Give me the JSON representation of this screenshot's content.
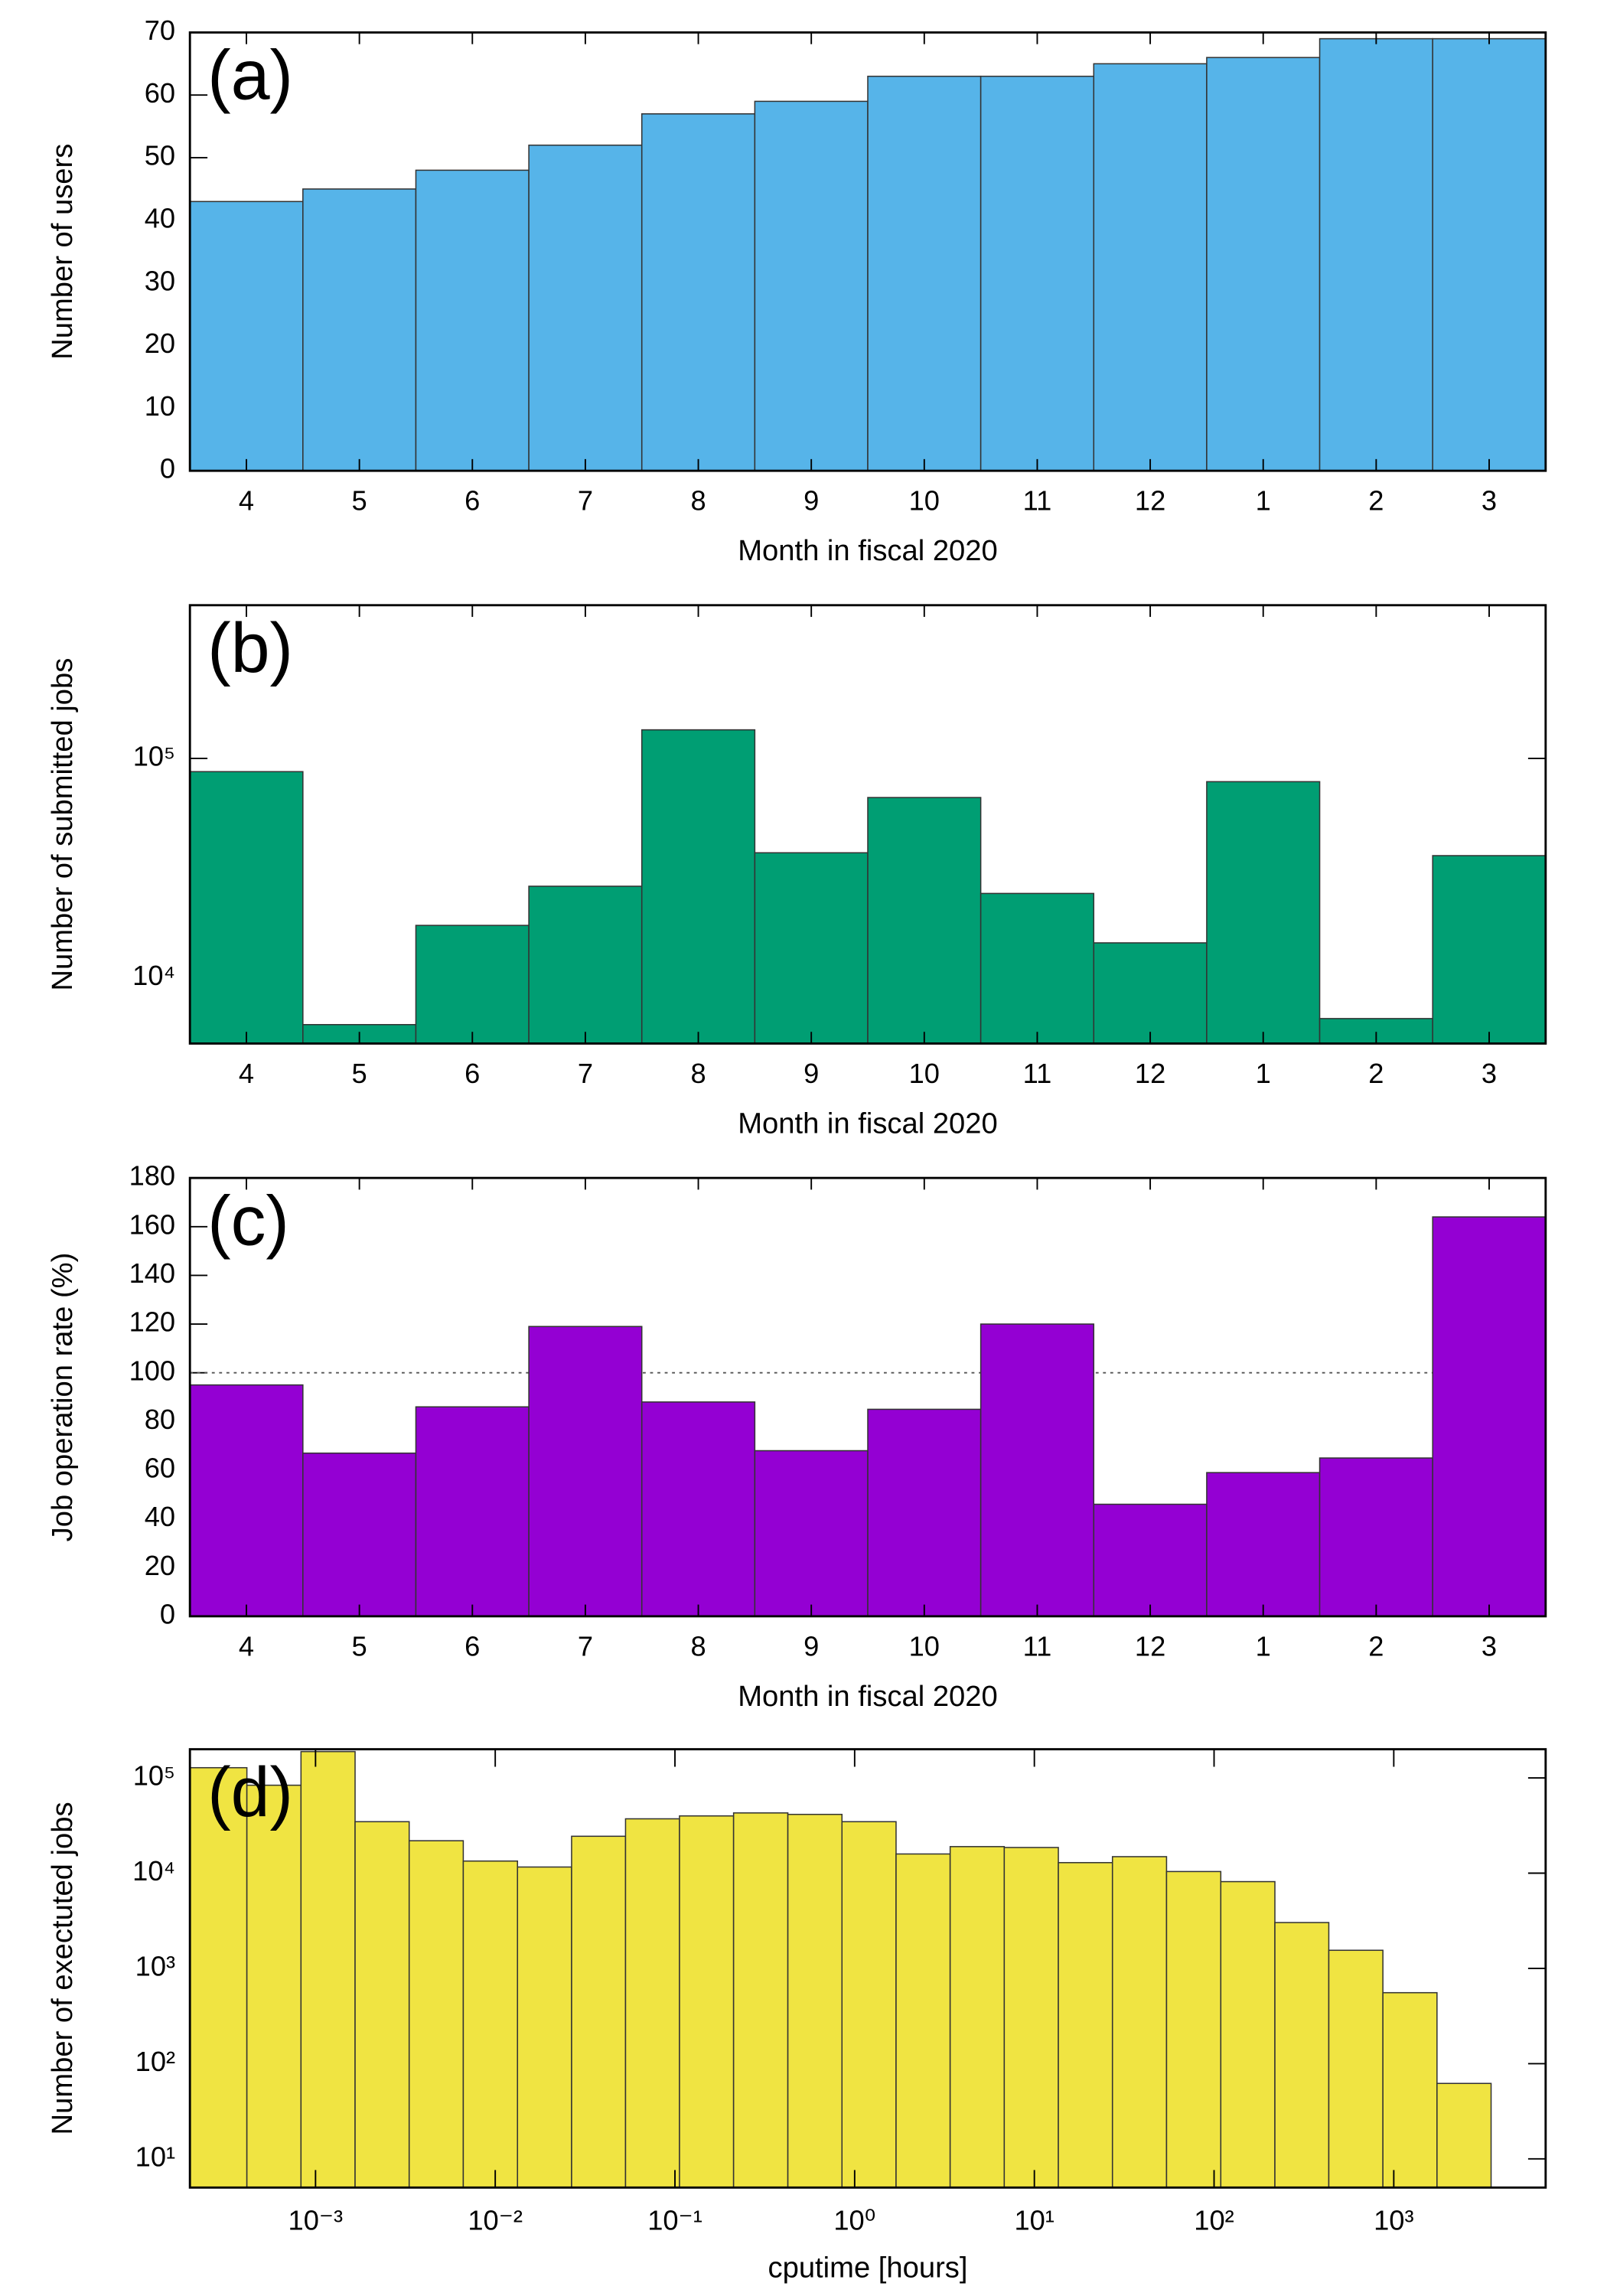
{
  "chart_data": [
    {
      "type": "bar",
      "annotation": "(a)",
      "xlabel": "Month in fiscal 2020",
      "ylabel": "Number of users",
      "categories": [
        "4",
        "5",
        "6",
        "7",
        "8",
        "9",
        "10",
        "11",
        "12",
        "1",
        "2",
        "3"
      ],
      "values": [
        43,
        45,
        48,
        52,
        57,
        59,
        63,
        63,
        65,
        66,
        69,
        69
      ],
      "color": "#56b4e9",
      "ylim": [
        0,
        70
      ],
      "yticks": [
        0,
        10,
        20,
        30,
        40,
        50,
        60,
        70
      ]
    },
    {
      "type": "bar",
      "annotation": "(b)",
      "xlabel": "Month in fiscal 2020",
      "ylabel": "Number of submitted jobs",
      "categories": [
        "4",
        "5",
        "6",
        "7",
        "8",
        "9",
        "10",
        "11",
        "12",
        "1",
        "2",
        "3"
      ],
      "values": [
        87000,
        6100,
        17300,
        26100,
        135000,
        37100,
        66300,
        24200,
        14400,
        78300,
        6500,
        36000
      ],
      "color": "#009e73",
      "log_y": true,
      "ylim": [
        5000,
        500000
      ],
      "yticks": [
        {
          "value": 10000,
          "label": "10⁴"
        },
        {
          "value": 100000,
          "label": "10⁵"
        }
      ]
    },
    {
      "type": "bar",
      "annotation": "(c)",
      "xlabel": "Month in fiscal 2020",
      "ylabel": "Job operation rate (%)",
      "categories": [
        "4",
        "5",
        "6",
        "7",
        "8",
        "9",
        "10",
        "11",
        "12",
        "1",
        "2",
        "3"
      ],
      "values": [
        95,
        67,
        86,
        119,
        88,
        68,
        85,
        120,
        46,
        59,
        65,
        164
      ],
      "color": "#9400d3",
      "ylim": [
        0,
        180
      ],
      "yticks": [
        0,
        20,
        40,
        60,
        80,
        100,
        120,
        140,
        160,
        180
      ],
      "hline": 100
    },
    {
      "type": "histogram",
      "annotation": "(d)",
      "xlabel": "cputime [hours]",
      "ylabel": "Number of exectuted jobs",
      "bins": [
        0.0002,
        0.000415,
        0.00083,
        0.00166,
        0.00332,
        0.00664,
        0.0133,
        0.0266,
        0.0531,
        0.106,
        0.212,
        0.425,
        0.85,
        1.7,
        3.4,
        6.8,
        13.6,
        27.2,
        54.4,
        109,
        218,
        435,
        870,
        1740,
        3480
      ],
      "values": [
        128000,
        83800,
        189000,
        34700,
        21900,
        13400,
        11600,
        24400,
        37200,
        39900,
        42900,
        41400,
        34700,
        15900,
        19000,
        18600,
        12900,
        14900,
        10400,
        8150,
        3030,
        1550,
        556,
        62
      ],
      "color": "#f0e442",
      "log_x": true,
      "log_y": true,
      "xlim": [
        0.0002,
        7000
      ],
      "ylim": [
        5,
        200000
      ],
      "xticks": [
        {
          "value": 0.001,
          "label": "10⁻³"
        },
        {
          "value": 0.01,
          "label": "10⁻²"
        },
        {
          "value": 0.1,
          "label": "10⁻¹"
        },
        {
          "value": 1,
          "label": "10⁰"
        },
        {
          "value": 10,
          "label": "10¹"
        },
        {
          "value": 100,
          "label": "10²"
        },
        {
          "value": 1000,
          "label": "10³"
        }
      ],
      "yticks": [
        {
          "value": 10,
          "label": "10¹"
        },
        {
          "value": 100,
          "label": "10²"
        },
        {
          "value": 1000,
          "label": "10³"
        },
        {
          "value": 10000,
          "label": "10⁴"
        },
        {
          "value": 100000,
          "label": "10⁵"
        }
      ]
    }
  ]
}
